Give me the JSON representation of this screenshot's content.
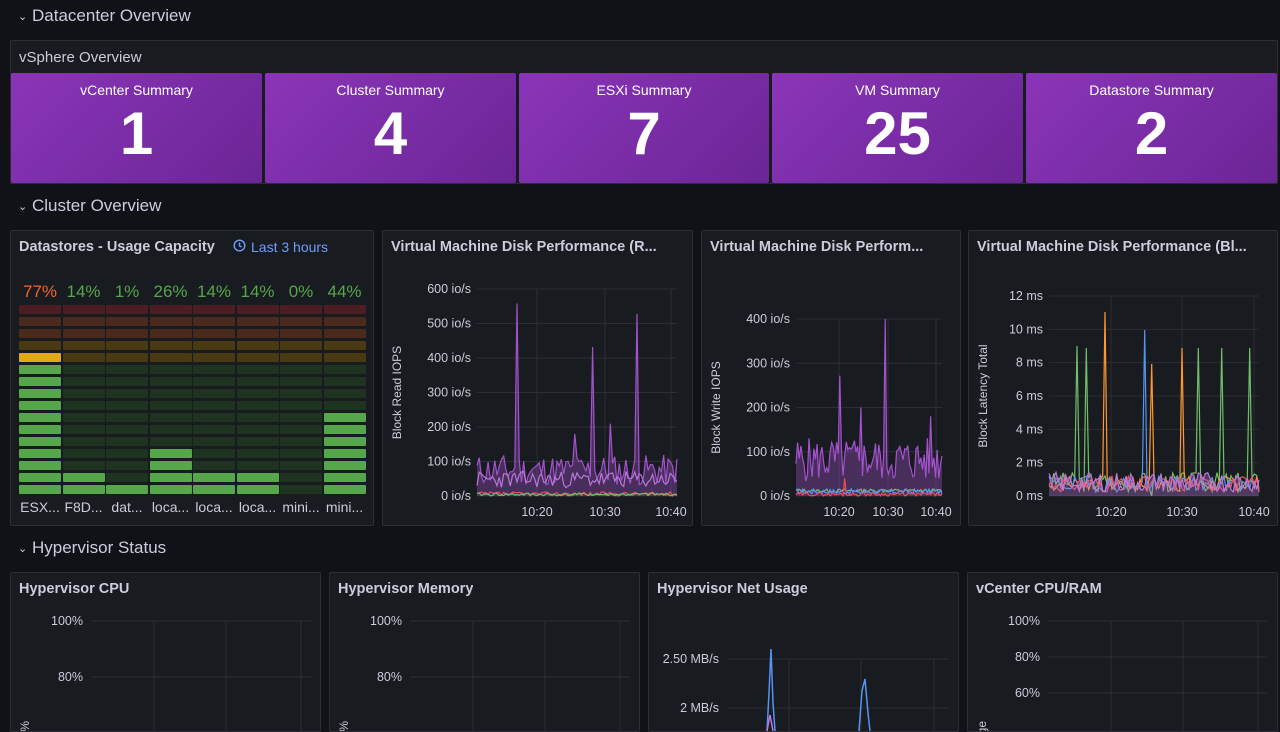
{
  "rows": {
    "datacenter": "Datacenter Overview",
    "cluster": "Cluster Overview",
    "hypervisor": "Hypervisor Status"
  },
  "vsphere": {
    "title": "vSphere Overview",
    "stats": [
      {
        "label": "vCenter Summary",
        "value": "1"
      },
      {
        "label": "Cluster Summary",
        "value": "4"
      },
      {
        "label": "ESXi Summary",
        "value": "7"
      },
      {
        "label": "VM Summary",
        "value": "25"
      },
      {
        "label": "Datastore Summary",
        "value": "2"
      }
    ]
  },
  "datastores": {
    "title": "Datastores - Usage Capacity",
    "time_range": "Last 3 hours",
    "items": [
      {
        "label": "ESX...",
        "percent": "77%",
        "fill": 0.77,
        "color": "#f2662a"
      },
      {
        "label": "F8D...",
        "percent": "14%",
        "fill": 0.14,
        "color": "#56a64b"
      },
      {
        "label": "dat...",
        "percent": "1%",
        "fill": 0.01,
        "color": "#56a64b"
      },
      {
        "label": "loca...",
        "percent": "26%",
        "fill": 0.26,
        "color": "#56a64b"
      },
      {
        "label": "loca...",
        "percent": "14%",
        "fill": 0.14,
        "color": "#56a64b"
      },
      {
        "label": "loca...",
        "percent": "14%",
        "fill": 0.14,
        "color": "#56a64b"
      },
      {
        "label": "mini...",
        "percent": "0%",
        "fill": 0.0,
        "color": "#56a64b"
      },
      {
        "label": "mini...",
        "percent": "44%",
        "fill": 0.44,
        "color": "#56a64b"
      }
    ]
  },
  "disk_read": {
    "title": "Virtual Machine Disk Performance (R...",
    "ylabel": "Block Read IOPS",
    "yticks": [
      "600 io/s",
      "500 io/s",
      "400 io/s",
      "300 io/s",
      "200 io/s",
      "100 io/s",
      "0 io/s"
    ],
    "xticks": [
      "10:20",
      "10:30",
      "10:40"
    ]
  },
  "disk_write": {
    "title": "Virtual Machine Disk Perform...",
    "ylabel": "Block Write IOPS",
    "yticks": [
      "400 io/s",
      "300 io/s",
      "200 io/s",
      "100 io/s",
      "0 io/s"
    ],
    "xticks": [
      "10:20",
      "10:30",
      "10:40"
    ]
  },
  "disk_latency": {
    "title": "Virtual Machine Disk Performance (Bl...",
    "ylabel": "Block Latency Total",
    "yticks": [
      "12 ms",
      "10 ms",
      "8 ms",
      "6 ms",
      "4 ms",
      "2 ms",
      "0 ms"
    ],
    "xticks": [
      "10:20",
      "10:30",
      "10:40"
    ]
  },
  "hv_cpu": {
    "title": "Hypervisor CPU",
    "yticks": [
      "100%",
      "80%"
    ],
    "ylabel": "%"
  },
  "hv_mem": {
    "title": "Hypervisor Memory",
    "yticks": [
      "100%",
      "80%"
    ],
    "ylabel": "g. %"
  },
  "hv_net": {
    "title": "Hypervisor Net Usage",
    "yticks": [
      "2.50 MB/s",
      "2 MB/s"
    ]
  },
  "vc_cpu": {
    "title": "vCenter CPU/RAM",
    "yticks": [
      "100%",
      "80%",
      "60%"
    ],
    "ylabel": "Usage"
  },
  "colors": {
    "accent": "#6e9fff",
    "stat_bg": "#7a2fa8",
    "purple_line": "#b877d9",
    "green": "#56a64b",
    "orange": "#f2662a"
  }
}
